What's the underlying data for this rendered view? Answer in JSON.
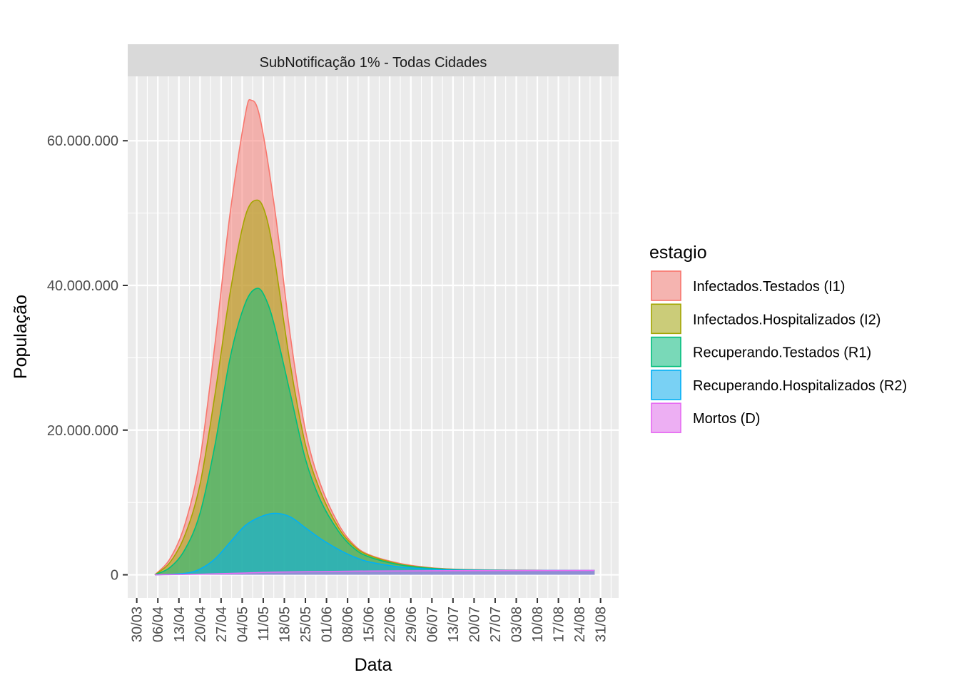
{
  "chart_data": {
    "type": "area",
    "title": "SubNotificação 1% - Todas Cidades",
    "xlabel": "Data",
    "ylabel": "População",
    "x_ticks": [
      "30/03",
      "06/04",
      "13/04",
      "20/04",
      "27/04",
      "04/05",
      "11/05",
      "18/05",
      "25/05",
      "01/06",
      "08/06",
      "15/06",
      "22/06",
      "29/06",
      "06/07",
      "13/07",
      "20/07",
      "27/07",
      "03/08",
      "10/08",
      "17/08",
      "24/08",
      "31/08"
    ],
    "x_domain_days": [
      -3,
      160
    ],
    "x_data_range": [
      "05/04",
      "29/08"
    ],
    "y_ticks": [
      {
        "value": 0,
        "label": "0"
      },
      {
        "value": 20000000,
        "label": "20.000.000"
      },
      {
        "value": 40000000,
        "label": "40.000.000"
      },
      {
        "value": 60000000,
        "label": "60.000.000"
      }
    ],
    "ylim": [
      -3200000,
      68900000
    ],
    "stacked": true,
    "grid": true,
    "legend": {
      "title": "estagio",
      "position": "right"
    },
    "series": [
      {
        "name": "Infectados.Testados (I1)",
        "color": "#F8766D",
        "points": [
          [
            "05/04",
            0
          ],
          [
            "10/04",
            2200000
          ],
          [
            "15/04",
            7000000
          ],
          [
            "20/04",
            16000000
          ],
          [
            "25/04",
            32000000
          ],
          [
            "30/04",
            50000000
          ],
          [
            "05/05",
            63500000
          ],
          [
            "07/05",
            65600000
          ],
          [
            "10/05",
            63000000
          ],
          [
            "15/05",
            50000000
          ],
          [
            "20/05",
            33000000
          ],
          [
            "25/05",
            20000000
          ],
          [
            "30/05",
            12500000
          ],
          [
            "05/06",
            7000000
          ],
          [
            "10/06",
            4200000
          ],
          [
            "15/06",
            2800000
          ],
          [
            "25/06",
            1600000
          ],
          [
            "05/07",
            1000000
          ],
          [
            "15/07",
            750000
          ],
          [
            "01/08",
            640000
          ],
          [
            "15/08",
            620000
          ],
          [
            "29/08",
            600000
          ]
        ]
      },
      {
        "name": "Infectados.Hospitalizados (I2)",
        "color": "#A3A500",
        "points": [
          [
            "05/04",
            0
          ],
          [
            "10/04",
            1700000
          ],
          [
            "15/04",
            5500000
          ],
          [
            "20/04",
            12500000
          ],
          [
            "25/04",
            25000000
          ],
          [
            "30/04",
            39000000
          ],
          [
            "05/05",
            49500000
          ],
          [
            "09/05",
            51800000
          ],
          [
            "12/05",
            49500000
          ],
          [
            "15/05",
            43000000
          ],
          [
            "20/05",
            29000000
          ],
          [
            "25/05",
            18000000
          ],
          [
            "30/05",
            11500000
          ],
          [
            "05/06",
            6500000
          ],
          [
            "10/06",
            4000000
          ],
          [
            "15/06",
            2700000
          ],
          [
            "25/06",
            1500000
          ],
          [
            "05/07",
            950000
          ],
          [
            "15/07",
            730000
          ],
          [
            "01/08",
            630000
          ],
          [
            "15/08",
            610000
          ],
          [
            "29/08",
            600000
          ]
        ]
      },
      {
        "name": "Recuperando.Testados (R1)",
        "color": "#00BF7D",
        "points": [
          [
            "05/04",
            0
          ],
          [
            "10/04",
            1000000
          ],
          [
            "15/04",
            3500000
          ],
          [
            "20/04",
            8500000
          ],
          [
            "25/04",
            18000000
          ],
          [
            "30/04",
            30000000
          ],
          [
            "05/05",
            37500000
          ],
          [
            "09/05",
            39600000
          ],
          [
            "12/05",
            38000000
          ],
          [
            "15/05",
            34000000
          ],
          [
            "20/05",
            25000000
          ],
          [
            "25/05",
            16000000
          ],
          [
            "30/05",
            10300000
          ],
          [
            "05/06",
            6000000
          ],
          [
            "10/06",
            3700000
          ],
          [
            "15/06",
            2500000
          ],
          [
            "25/06",
            1400000
          ],
          [
            "05/07",
            900000
          ],
          [
            "15/07",
            700000
          ],
          [
            "01/08",
            620000
          ],
          [
            "15/08",
            600000
          ],
          [
            "29/08",
            600000
          ]
        ]
      },
      {
        "name": "Recuperando.Hospitalizados (R2)",
        "color": "#00B0F6",
        "points": [
          [
            "05/04",
            0
          ],
          [
            "15/04",
            200000
          ],
          [
            "20/04",
            800000
          ],
          [
            "25/04",
            2200000
          ],
          [
            "30/04",
            4500000
          ],
          [
            "05/05",
            6800000
          ],
          [
            "10/05",
            8000000
          ],
          [
            "15/05",
            8500000
          ],
          [
            "20/05",
            8000000
          ],
          [
            "25/05",
            6500000
          ],
          [
            "30/05",
            5000000
          ],
          [
            "05/06",
            3500000
          ],
          [
            "10/06",
            2500000
          ],
          [
            "15/06",
            1800000
          ],
          [
            "25/06",
            1100000
          ],
          [
            "05/07",
            800000
          ],
          [
            "15/07",
            650000
          ],
          [
            "01/08",
            600000
          ],
          [
            "15/08",
            600000
          ],
          [
            "29/08",
            600000
          ]
        ]
      },
      {
        "name": "Mortos (D)",
        "color": "#E76BF3",
        "points": [
          [
            "05/04",
            0
          ],
          [
            "20/04",
            80000
          ],
          [
            "05/05",
            250000
          ],
          [
            "15/05",
            370000
          ],
          [
            "30/05",
            450000
          ],
          [
            "15/06",
            520000
          ],
          [
            "15/07",
            570000
          ],
          [
            "15/08",
            590000
          ],
          [
            "29/08",
            600000
          ]
        ]
      }
    ]
  }
}
